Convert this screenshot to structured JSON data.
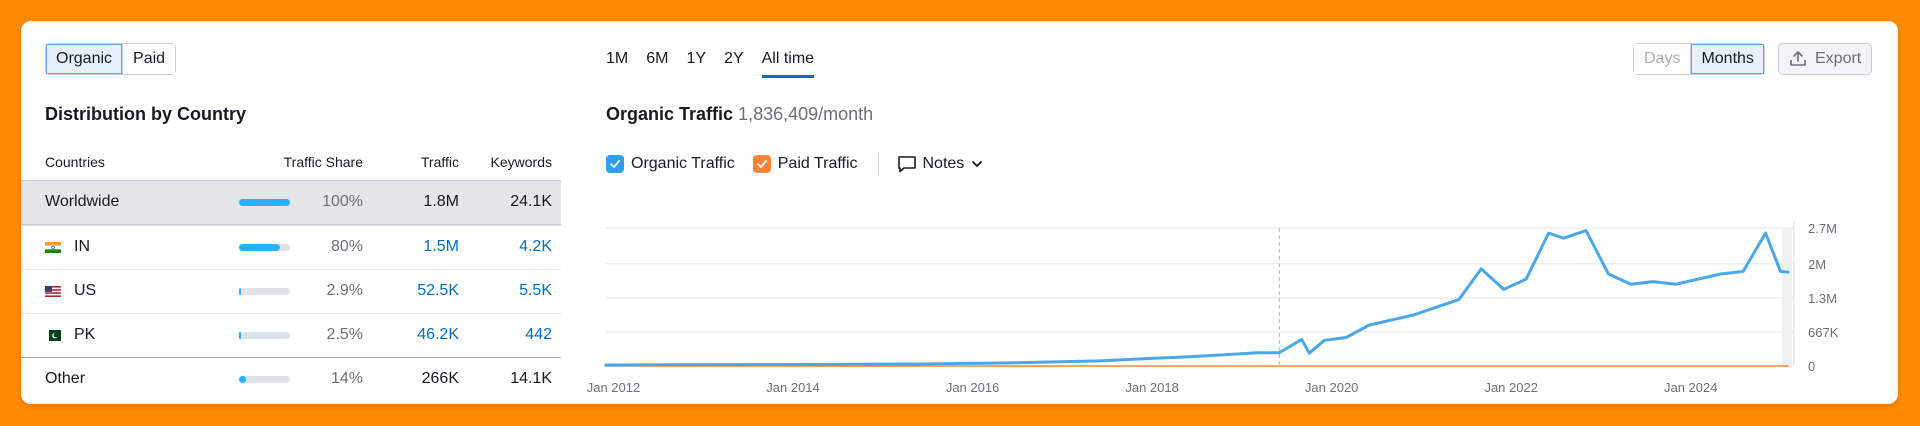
{
  "toggle": {
    "organic": "Organic",
    "paid": "Paid"
  },
  "section_title": "Distribution by Country",
  "table": {
    "headers": {
      "countries": "Countries",
      "share": "Traffic Share",
      "traffic": "Traffic",
      "keywords": "Keywords"
    },
    "rows": [
      {
        "name": "Worldwide",
        "share": "100%",
        "share_fraction": 1.0,
        "traffic": "1.8M",
        "keywords": "24.1K",
        "flag": ""
      },
      {
        "name": "IN",
        "share": "80%",
        "share_fraction": 0.8,
        "traffic": "1.5M",
        "keywords": "4.2K",
        "flag": "india-flag-icon"
      },
      {
        "name": "US",
        "share": "2.9%",
        "share_fraction": 0.029,
        "traffic": "52.5K",
        "keywords": "5.5K",
        "flag": "usa-flag-icon"
      },
      {
        "name": "PK",
        "share": "2.5%",
        "share_fraction": 0.025,
        "traffic": "46.2K",
        "keywords": "442",
        "flag": "pakistan-flag-icon"
      },
      {
        "name": "Other",
        "share": "14%",
        "share_fraction": 0.14,
        "traffic": "266K",
        "keywords": "14.1K",
        "flag": ""
      }
    ]
  },
  "periods": [
    "1M",
    "6M",
    "1Y",
    "2Y",
    "All time"
  ],
  "active_period": "All time",
  "granularity": {
    "days": "Days",
    "months": "Months",
    "active": "Months"
  },
  "export_label": "Export",
  "traffic_header": {
    "label": "Organic Traffic",
    "value": "1,836,409/month"
  },
  "legend": {
    "organic": "Organic Traffic",
    "paid": "Paid Traffic",
    "notes": "Notes"
  },
  "colors": {
    "accent": "#006dca",
    "organic": "#4aa8ea",
    "paid": "#ff8534",
    "checkbox_blue": "#2f9ff0",
    "highlight_row": "#e4e6ec"
  },
  "chart_data": {
    "type": "line",
    "x_ticks": [
      "Jan 2012",
      "Jan 2014",
      "Jan 2016",
      "Jan 2018",
      "Jan 2020",
      "Jan 2022",
      "Jan 2024"
    ],
    "y_ticks": [
      "0",
      "667K",
      "1.3M",
      "2M",
      "2.7M"
    ],
    "ylim": [
      0,
      2700000
    ],
    "xlim": [
      "2011-12",
      "2025-02"
    ],
    "grid": true,
    "series": [
      {
        "name": "Organic Traffic",
        "color": "#4aa8ea",
        "x": [
          "2011-12",
          "2014-01",
          "2015-06",
          "2016-06",
          "2017-06",
          "2018-01",
          "2018-06",
          "2019-01",
          "2019-03",
          "2019-06",
          "2019-09",
          "2019-10",
          "2019-12",
          "2020-03",
          "2020-06",
          "2020-09",
          "2020-12",
          "2021-03",
          "2021-06",
          "2021-09",
          "2021-12",
          "2022-03",
          "2022-06",
          "2022-08",
          "2022-11",
          "2023-02",
          "2023-05",
          "2023-08",
          "2023-11",
          "2024-02",
          "2024-05",
          "2024-08",
          "2024-11",
          "2025-01",
          "2025-02"
        ],
        "y": [
          20000,
          30000,
          40000,
          60000,
          100000,
          150000,
          180000,
          240000,
          260000,
          260000,
          520000,
          250000,
          500000,
          560000,
          800000,
          900000,
          1000000,
          1150000,
          1300000,
          1900000,
          1500000,
          1700000,
          2600000,
          2500000,
          2650000,
          1800000,
          1600000,
          1650000,
          1600000,
          1700000,
          1800000,
          1850000,
          2600000,
          1850000,
          1836409
        ]
      },
      {
        "name": "Paid Traffic",
        "color": "#ff8534",
        "x": [
          "2011-12",
          "2025-02"
        ],
        "y": [
          0,
          0
        ]
      }
    ]
  }
}
